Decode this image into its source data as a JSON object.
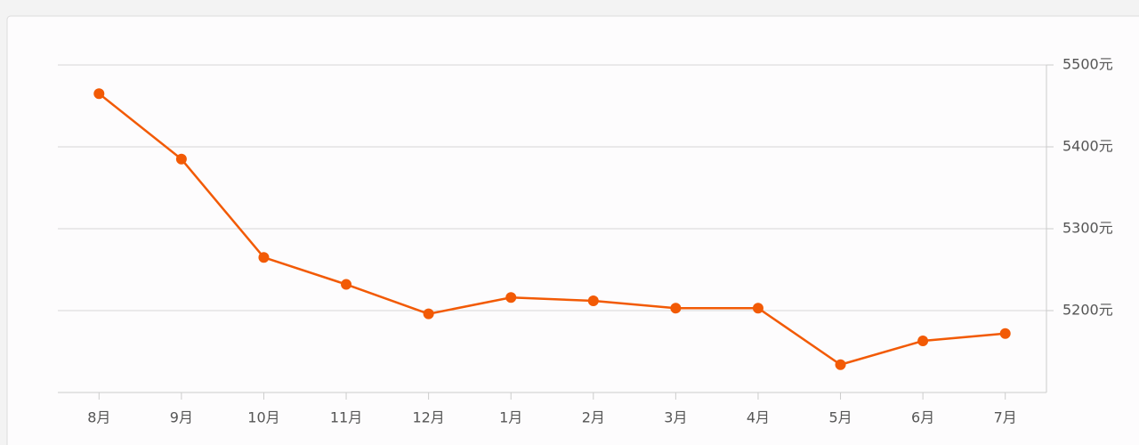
{
  "chart_data": {
    "type": "line",
    "categories": [
      "8月",
      "9月",
      "10月",
      "11月",
      "12月",
      "1月",
      "2月",
      "3月",
      "4月",
      "5月",
      "6月",
      "7月"
    ],
    "series": [
      {
        "color": "#f25a05",
        "values": [
          5465,
          5385,
          5265,
          5232,
          5196,
          5216,
          5212,
          5203,
          5203,
          5134,
          5163,
          5172
        ]
      }
    ],
    "ylim": [
      5100,
      5500
    ],
    "yticks": [
      {
        "value": 5200,
        "label": "5200元"
      },
      {
        "value": 5300,
        "label": "5300元"
      },
      {
        "value": 5400,
        "label": "5400元"
      },
      {
        "value": 5500,
        "label": "5500元"
      }
    ],
    "y_axis_side": "right",
    "grid": true
  }
}
